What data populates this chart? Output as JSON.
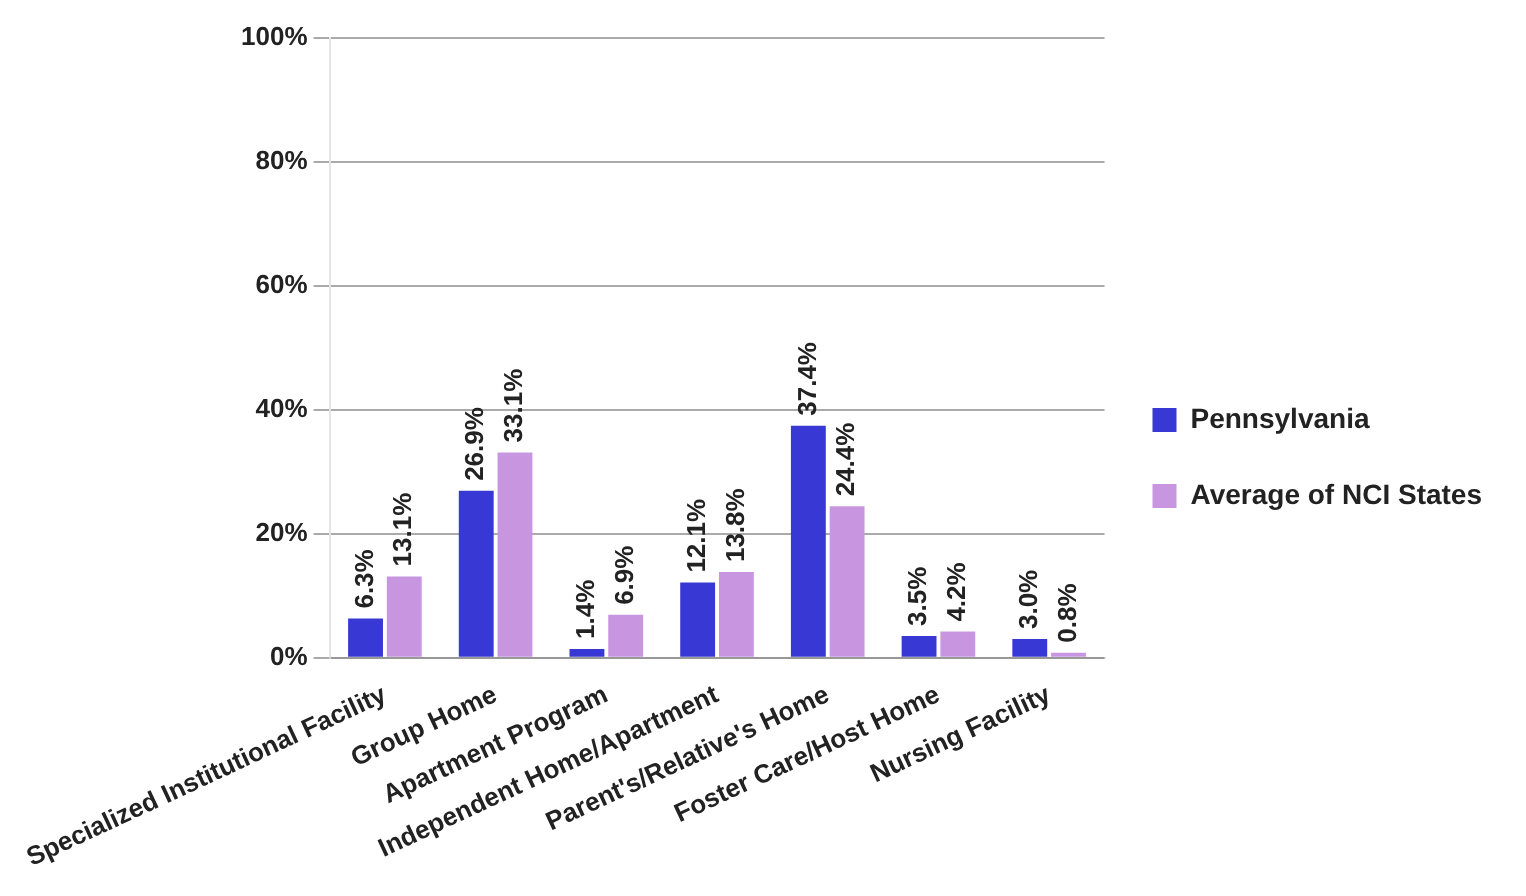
{
  "chart_data": {
    "type": "bar",
    "categories": [
      "Specialized Institutional Facility",
      "Group Home",
      "Apartment Program",
      "Independent Home/Apartment",
      "Parent's/Relative's Home",
      "Foster Care/Host Home",
      "Nursing Facility"
    ],
    "series": [
      {
        "name": "Pennsylvania",
        "color": "#3838d4",
        "values": [
          6.3,
          26.9,
          1.4,
          12.1,
          37.4,
          3.5,
          3.0
        ],
        "value_labels": [
          "6.3%",
          "26.9%",
          "1.4%",
          "12.1%",
          "37.4%",
          "3.5%",
          "3.0%"
        ]
      },
      {
        "name": "Average of NCI States",
        "color": "#c896e0",
        "values": [
          13.1,
          33.1,
          6.9,
          13.8,
          24.4,
          4.2,
          0.8
        ],
        "value_labels": [
          "13.1%",
          "33.1%",
          "6.9%",
          "13.8%",
          "24.4%",
          "4.2%",
          "0.8%"
        ]
      }
    ],
    "ylim": [
      0,
      100
    ],
    "yticks": [
      {
        "value": 0,
        "label": "0%"
      },
      {
        "value": 20,
        "label": "20%"
      },
      {
        "value": 40,
        "label": "40%"
      },
      {
        "value": 60,
        "label": "60%"
      },
      {
        "value": 80,
        "label": "80%"
      },
      {
        "value": 100,
        "label": "100%"
      }
    ],
    "grid": "y",
    "legend": "right"
  }
}
